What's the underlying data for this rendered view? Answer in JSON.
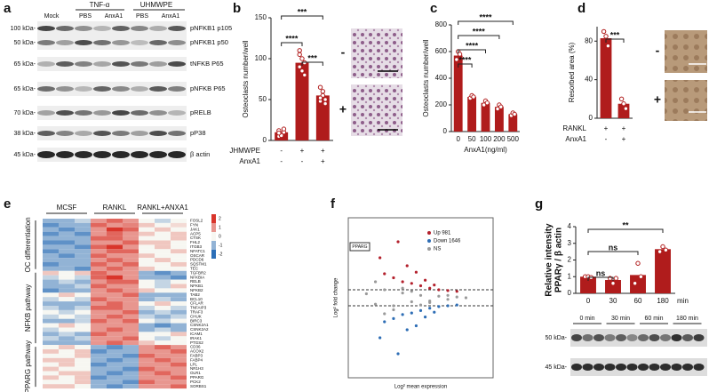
{
  "panel_labels": [
    "a",
    "b",
    "c",
    "d",
    "e",
    "f",
    "g"
  ],
  "blot_a": {
    "groups": [
      "TNF-α",
      "UHMWPE"
    ],
    "lanes": [
      "Mock",
      "PBS",
      "AnxA1",
      "PBS",
      "AnxA1"
    ],
    "mw": [
      "100 kDa-",
      "50 kDa-",
      "65 kDa-",
      "65 kDa-",
      "70 kDa-",
      "38 kDa-",
      "45 kDa-"
    ],
    "proteins": [
      "pNFKB1 p105",
      "pNFKB1 p50",
      "tNFKB P65",
      "pNFKB P65",
      "pRELB",
      "pP38",
      "β actin"
    ]
  },
  "blot_g": {
    "lanes": [
      "0 min",
      "30 min",
      "60 min",
      "180 min"
    ],
    "mw": [
      "50 kDa-",
      "45 kDa-"
    ]
  },
  "chart_data": [
    {
      "type": "bar",
      "ylabel": "Osteoclasts number/well",
      "values": [
        10,
        95,
        55
      ],
      "color": "#b01c1c",
      "points": [
        [
          5,
          8,
          10,
          12,
          6,
          14,
          9
        ],
        [
          110,
          100,
          95,
          90,
          85,
          80,
          105
        ],
        [
          65,
          55,
          50,
          48,
          60,
          45,
          52
        ]
      ],
      "ylim": [
        0,
        150
      ],
      "yticks": [
        0,
        50,
        100,
        150
      ],
      "rows": [
        {
          "name": "JHMWPE",
          "cells": [
            "-",
            "+",
            "+"
          ]
        },
        {
          "name": "AnxA1",
          "cells": [
            "-",
            "-",
            "+"
          ]
        }
      ],
      "significance": [
        "****",
        "***",
        "***"
      ],
      "image_labels": [
        "-",
        "+"
      ]
    },
    {
      "type": "bar",
      "ylabel": "Osteoclasts number/well",
      "xlabel": "AnxA1(ng/ml)",
      "categories": [
        "0",
        "50",
        "100",
        "200",
        "500"
      ],
      "values": [
        570,
        260,
        215,
        185,
        130
      ],
      "color": "#b01c1c",
      "points": [
        [
          540,
          600,
          580
        ],
        [
          250,
          270,
          260
        ],
        [
          200,
          230,
          215
        ],
        [
          170,
          200,
          185
        ],
        [
          120,
          140,
          130
        ]
      ],
      "ylim": [
        0,
        800
      ],
      "yticks": [
        0,
        200,
        400,
        600,
        800
      ],
      "significance": [
        "****",
        "****",
        "****",
        "****"
      ]
    },
    {
      "type": "bar",
      "ylabel": "Resorbed area (%)",
      "values": [
        83,
        15
      ],
      "color": "#b01c1c",
      "points": [
        [
          90,
          85,
          75
        ],
        [
          20,
          15,
          10
        ]
      ],
      "ylim": [
        0,
        95
      ],
      "yticks": [
        0,
        40,
        80
      ],
      "rows": [
        {
          "name": "RANKL",
          "cells": [
            "+",
            "+"
          ]
        },
        {
          "name": "AnxA1",
          "cells": [
            "-",
            "+"
          ]
        }
      ],
      "significance": [
        "***"
      ],
      "image_labels": [
        "-",
        "+"
      ]
    },
    {
      "type": "heatmap",
      "groups": [
        "MCSF",
        "RANKL",
        "RANKL+ANXA1"
      ],
      "pathways": [
        "OC differentiation",
        "NFKB pathway",
        "PPARG pathway"
      ],
      "colors": [
        "#2c6fb8",
        "#f7f7f2",
        "#d9352b"
      ],
      "clim": [
        -2,
        2
      ],
      "cticks": [
        2,
        1,
        0,
        -1,
        -2
      ],
      "rows": [
        "FOSL2",
        "FYN",
        "JAK1",
        "ACP5",
        "CTSK",
        "FHL2",
        "ITGB3",
        "NFATC1",
        "OSCAR",
        "PDCD6",
        "SQSTM1",
        "TEC",
        "TGFBR2",
        "NFKBIA",
        "RELB",
        "NFKB1",
        "NFKB2",
        "TAB2",
        "BCL10",
        "CFLAR",
        "TNFAIP3",
        "TRAF3",
        "CHUK",
        "BIRC3",
        "CSNK2A1",
        "CSNK2A2",
        "ICAM1",
        "IRAK1",
        "PTGS2",
        "CD36",
        "ACOX2",
        "FABP3",
        "FABP4",
        "LPL",
        "NR1H3",
        "OLR1",
        "PPARG",
        "PCK2",
        "SORBS1"
      ],
      "matrix": [
        [
          -1,
          -1,
          -0.5,
          1,
          1.5,
          1,
          0,
          -0.5,
          0
        ],
        [
          -1.5,
          -1,
          -1,
          1.5,
          1,
          1.2,
          0.5,
          0,
          0.3
        ],
        [
          -1,
          -1.5,
          -1,
          1,
          2,
          1.5,
          0,
          0.5,
          0
        ],
        [
          -1.5,
          -1,
          -1.5,
          1,
          1.5,
          1,
          0.5,
          0,
          0.5
        ],
        [
          -1,
          -1,
          -1,
          1.5,
          1.5,
          1,
          0,
          0,
          0.5
        ],
        [
          -1.5,
          -1.5,
          -1,
          1,
          1,
          1.5,
          0.5,
          0.5,
          0
        ],
        [
          -1,
          -1,
          -1.5,
          1.5,
          2,
          1,
          0,
          0.5,
          0
        ],
        [
          -1.5,
          -1,
          -1,
          1,
          1.5,
          1.5,
          0,
          0,
          0.5
        ],
        [
          -1,
          -1.5,
          -1,
          1.5,
          1,
          1,
          0.5,
          0,
          0
        ],
        [
          -1,
          -1,
          -1,
          1,
          1.5,
          1,
          0,
          0.5,
          0
        ],
        [
          -1.5,
          -1,
          -1,
          1.5,
          1,
          1.5,
          0,
          0,
          0.5
        ],
        [
          -1,
          -1,
          -1.5,
          1,
          1.5,
          1,
          0.5,
          0,
          0
        ],
        [
          0.5,
          0,
          0.5,
          1.5,
          1,
          1,
          -1,
          -1.5,
          -1
        ],
        [
          -0.5,
          0,
          -0.5,
          1.5,
          2,
          1,
          -1,
          -1,
          -1.5
        ],
        [
          -1,
          -0.5,
          -1,
          1,
          1.5,
          1.5,
          0,
          -0.5,
          0
        ],
        [
          -1,
          -1,
          -0.5,
          1.5,
          1,
          1,
          0,
          -0.5,
          0.5
        ],
        [
          -1.5,
          -1,
          -1,
          1,
          1.5,
          1,
          0.5,
          0,
          0
        ],
        [
          0,
          0.5,
          0,
          1,
          1,
          1.5,
          -1,
          -1,
          -1
        ],
        [
          -0.5,
          0,
          -0.5,
          1.5,
          1,
          1,
          -1,
          -0.5,
          -1
        ],
        [
          -1,
          -1,
          -1,
          1,
          1.5,
          1,
          0,
          0.5,
          0
        ],
        [
          -0.5,
          -1,
          -0.5,
          1.5,
          1.5,
          1,
          -0.5,
          0,
          -0.5
        ],
        [
          0,
          -0.5,
          0,
          1,
          1,
          1.5,
          -1,
          -0.5,
          -1
        ],
        [
          -0.5,
          0,
          -0.5,
          1,
          1.5,
          1,
          -0.5,
          -1,
          -0.5
        ],
        [
          -1,
          -1,
          -0.5,
          1.5,
          1,
          1.5,
          0,
          -0.5,
          0
        ],
        [
          0,
          0.5,
          0,
          1,
          1,
          1,
          -1,
          -1.5,
          -1
        ],
        [
          -0.5,
          0,
          0,
          1,
          1.5,
          1,
          -1,
          -0.5,
          -1
        ],
        [
          -1,
          -0.5,
          -1,
          1.5,
          1,
          1,
          0,
          0,
          0.5
        ],
        [
          -0.5,
          -1,
          -0.5,
          1,
          1,
          1.5,
          0,
          -0.5,
          0
        ],
        [
          -1,
          -1,
          -1,
          1,
          1.5,
          1,
          0.5,
          0,
          0
        ],
        [
          0,
          0.5,
          0,
          -1,
          -1.5,
          -1,
          1,
          1.5,
          1
        ],
        [
          0.5,
          0,
          0.5,
          -1.5,
          -1,
          -1,
          1,
          1,
          1.5
        ],
        [
          0,
          0,
          0.5,
          -1,
          -1,
          -1.5,
          1.5,
          1,
          1
        ],
        [
          0.5,
          0.5,
          0,
          -1,
          -1.5,
          -1,
          1,
          1.5,
          1
        ],
        [
          0,
          0.5,
          0,
          -1.5,
          -1,
          -1,
          1,
          1,
          1.5
        ],
        [
          0.5,
          0,
          0,
          -1,
          -1,
          -1.5,
          1.5,
          1,
          1
        ],
        [
          0,
          0.5,
          0.5,
          -1,
          -1.5,
          -1,
          1,
          1.5,
          1
        ],
        [
          0.5,
          0,
          0.5,
          -1.5,
          -1,
          -1,
          1,
          1,
          1.5
        ],
        [
          0,
          0,
          0.5,
          -1,
          -1,
          -1.5,
          1.5,
          1,
          1
        ],
        [
          0.5,
          0.5,
          0,
          -1,
          -1.5,
          -1,
          1,
          1,
          1.5
        ]
      ]
    },
    {
      "type": "scatter",
      "ylabel": "Log² fold change",
      "xlabel": "Log² mean expression",
      "annotation": "PPARG",
      "xlim": [
        0,
        16
      ],
      "ylim": [
        -10,
        10
      ],
      "hlines": [
        -1,
        1
      ],
      "series": [
        {
          "name": "Up 981",
          "color": "#b3202c",
          "x": [
            4,
            5,
            6,
            7,
            8,
            9,
            10,
            11,
            12,
            6.5,
            8.5,
            3.5,
            5.5,
            7.5,
            9.5
          ],
          "y": [
            3,
            2.5,
            2,
            1.8,
            1.5,
            1.2,
            1,
            0.9,
            0.8,
            4,
            2.2,
            5,
            7,
            3.2,
            1.6
          ]
        },
        {
          "name": "Down 1646",
          "color": "#2d6db5",
          "x": [
            4,
            5,
            6,
            7,
            8,
            9,
            10,
            11,
            12,
            6.5,
            8.5,
            3.5,
            5.5,
            7.5,
            9.5
          ],
          "y": [
            -3,
            -2.6,
            -2.1,
            -1.9,
            -1.6,
            -1.3,
            -1.1,
            -1,
            -0.9,
            -4,
            -2.4,
            -5,
            -7,
            -3.5,
            -1.8
          ]
        },
        {
          "name": "NS",
          "color": "#9a9a9a",
          "x": [
            2,
            3,
            4,
            5,
            6,
            7,
            8,
            9,
            10,
            11,
            12,
            13,
            3,
            5,
            7,
            9,
            11,
            4,
            6,
            8
          ],
          "y": [
            0.5,
            -0.8,
            1,
            -1,
            0.6,
            -0.5,
            0.3,
            -0.4,
            0.2,
            -0.2,
            0.1,
            0,
            2,
            -1.5,
            0.8,
            -0.6,
            0.3,
            -2,
            1.2,
            -0.9
          ]
        }
      ]
    },
    {
      "type": "bar",
      "ylabel": [
        "Relative intensity",
        "PPARγ / β actin"
      ],
      "xlabel": "min",
      "categories": [
        "0",
        "30",
        "60",
        "180"
      ],
      "values": [
        1,
        0.8,
        1.1,
        2.65
      ],
      "color": "#b01c1c",
      "points": [
        [
          1,
          1,
          0.95
        ],
        [
          0.9,
          0.6,
          0.9
        ],
        [
          0.6,
          1.8,
          1
        ],
        [
          2.5,
          2.8,
          2.6
        ]
      ],
      "ylim": [
        0,
        4
      ],
      "yticks": [
        0,
        1,
        2,
        3,
        4
      ],
      "significance": [
        "ns",
        "ns",
        "**"
      ]
    }
  ]
}
